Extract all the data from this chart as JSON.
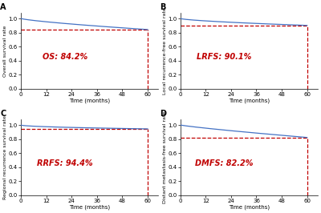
{
  "subplots": [
    {
      "label": "A",
      "ylabel": "Overall survival rate",
      "annotation": "OS: 84.2%",
      "endpoint_value": 0.842,
      "curve_shape": "moderate_decline"
    },
    {
      "label": "B",
      "ylabel": "Local recurrence-free survival rate",
      "annotation": "LRFS: 90.1%",
      "endpoint_value": 0.901,
      "curve_shape": "slow_decline"
    },
    {
      "label": "C",
      "ylabel": "Regional recurrence survival rate",
      "annotation": "RRFS: 94.4%",
      "endpoint_value": 0.944,
      "curve_shape": "very_slow_decline"
    },
    {
      "label": "D",
      "ylabel": "Distant metastasis-free survival rate",
      "annotation": "DMFS: 82.2%",
      "endpoint_value": 0.822,
      "curve_shape": "linear_decline"
    }
  ],
  "xlabel": "Time (months)",
  "x_ticks": [
    0,
    12,
    24,
    36,
    48,
    60
  ],
  "xlim": [
    0,
    65
  ],
  "ylim": [
    0.0,
    1.08
  ],
  "y_ticks": [
    0.0,
    0.2,
    0.4,
    0.6,
    0.8,
    1.0
  ],
  "line_color": "#4472C4",
  "dashed_color": "#C00000",
  "annotation_color": "#C00000",
  "annotation_fontsize": 7,
  "ylabel_fontsize": 4.5,
  "xlabel_fontsize": 5,
  "tick_fontsize": 5,
  "label_fontsize": 7,
  "background_color": "#ffffff"
}
